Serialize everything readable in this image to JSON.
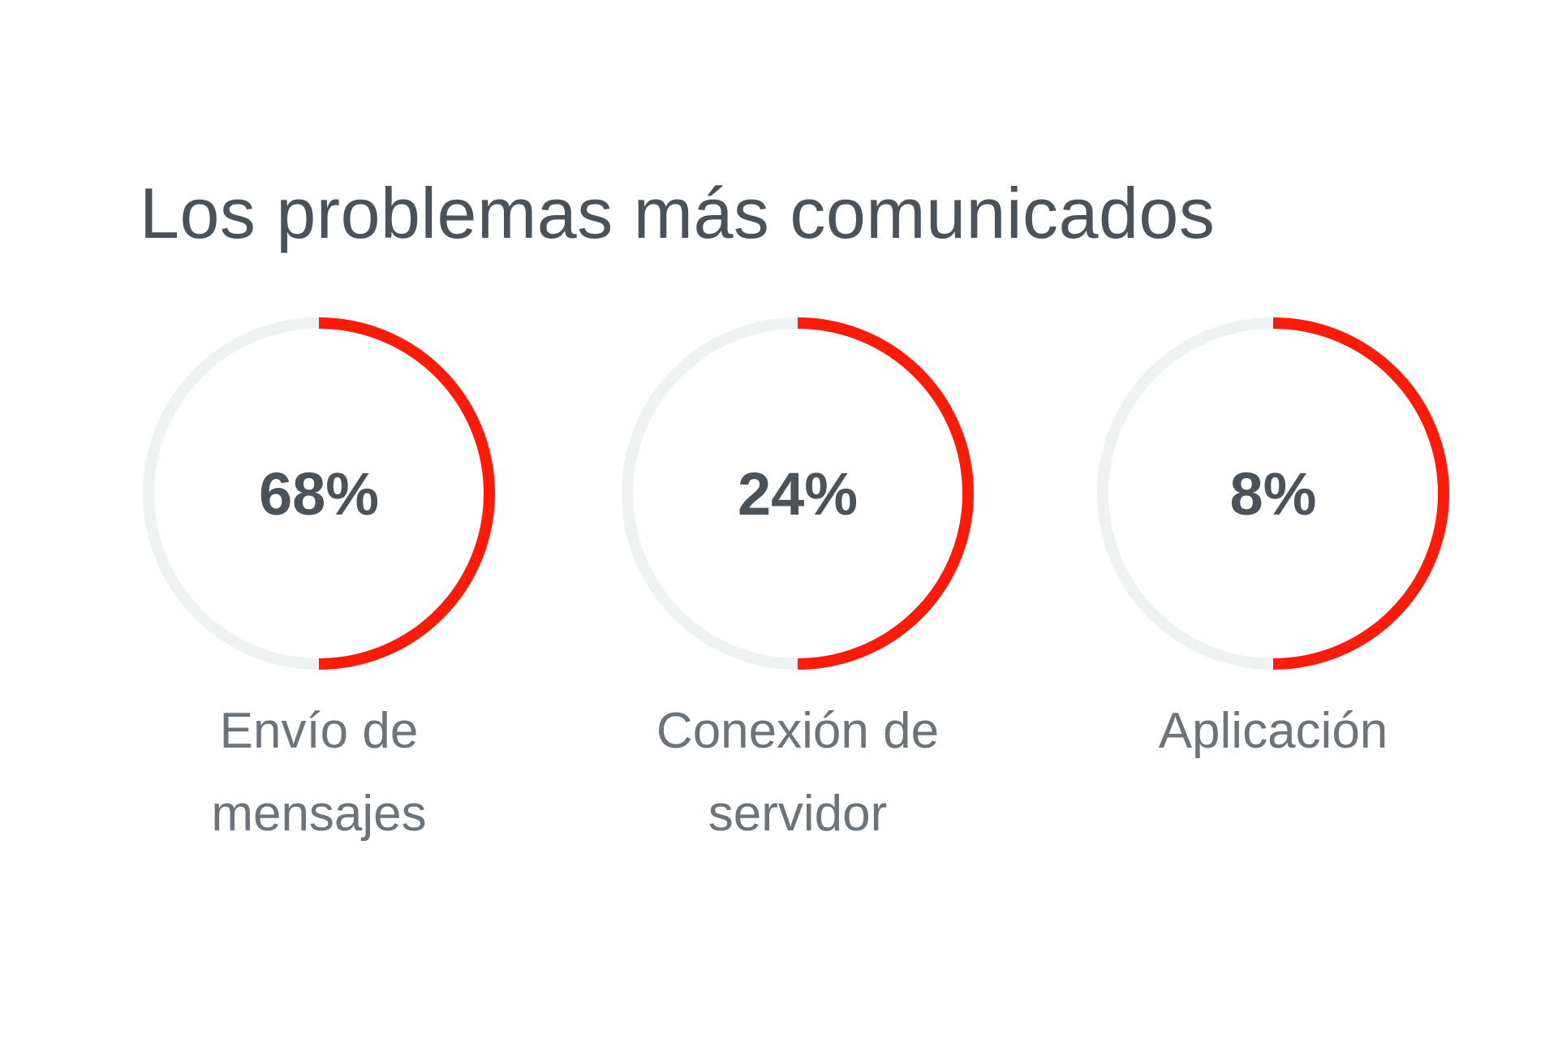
{
  "widget": {
    "title": "Los problemas más comunicados",
    "items": [
      {
        "percent_label": "68%",
        "value": 68,
        "label_line1": "Envío de",
        "label_line2": "mensajes"
      },
      {
        "percent_label": "24%",
        "value": 24,
        "label_line1": "Conexión de",
        "label_line2": "servidor"
      },
      {
        "percent_label": "8%",
        "value": 8,
        "label_line1": "Aplicación",
        "label_line2": ""
      }
    ]
  },
  "colors": {
    "accent": "#ff1a0a",
    "track": "#eef2f3",
    "text_dark": "#4b5359",
    "text_label": "#6c747a",
    "background": "#ffffff"
  },
  "icons": {
    "ring": "half-ring-progress-icon"
  }
}
